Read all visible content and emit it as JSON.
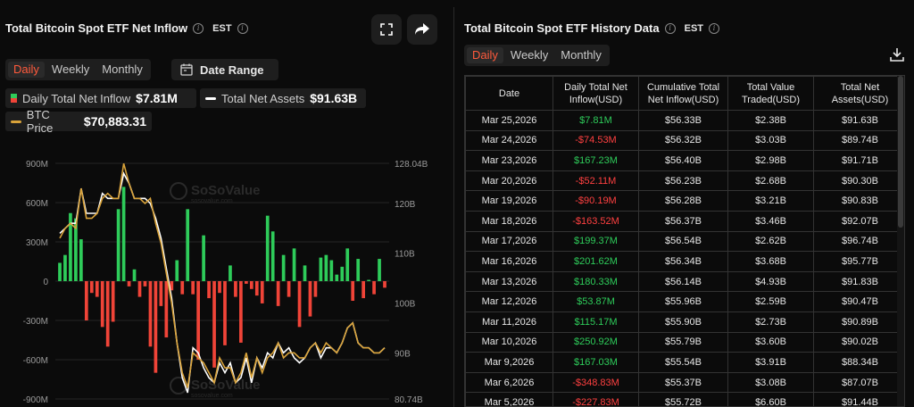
{
  "left": {
    "title": "Total Bitcoin Spot ETF Net Inflow",
    "tz": "EST",
    "tabs": [
      "Daily",
      "Weekly",
      "Monthly"
    ],
    "date_range": "Date Range",
    "legend": {
      "inflow_label": "Daily Total Net Inflow",
      "inflow_value": "$7.81M",
      "assets_label": "Total Net Assets",
      "assets_value": "$91.63B",
      "btc_label": "BTC Price",
      "btc_value": "$70,883.31"
    },
    "watermark": "SoSoValue",
    "watermark_sub": "sosovalue.com"
  },
  "right": {
    "title": "Total Bitcoin Spot ETF History Data",
    "tz": "EST",
    "tabs": [
      "Daily",
      "Weekly",
      "Monthly"
    ],
    "headers": [
      "Date",
      "Daily Total Net Inflow(USD)",
      "Cumulative Total Net Inflow(USD)",
      "Total Value Traded(USD)",
      "Total Net Assets(USD)"
    ],
    "rows": [
      [
        "Mar 25,2026",
        "$7.81M",
        "$56.33B",
        "$2.38B",
        "$91.63B"
      ],
      [
        "Mar 24,2026",
        "-$74.53M",
        "$56.32B",
        "$3.03B",
        "$89.74B"
      ],
      [
        "Mar 23,2026",
        "$167.23M",
        "$56.40B",
        "$2.98B",
        "$91.71B"
      ],
      [
        "Mar 20,2026",
        "-$52.11M",
        "$56.23B",
        "$2.68B",
        "$90.30B"
      ],
      [
        "Mar 19,2026",
        "-$90.19M",
        "$56.28B",
        "$3.21B",
        "$90.83B"
      ],
      [
        "Mar 18,2026",
        "-$163.52M",
        "$56.37B",
        "$3.46B",
        "$92.07B"
      ],
      [
        "Mar 17,2026",
        "$199.37M",
        "$56.54B",
        "$2.62B",
        "$96.74B"
      ],
      [
        "Mar 16,2026",
        "$201.62M",
        "$56.34B",
        "$3.68B",
        "$95.77B"
      ],
      [
        "Mar 13,2026",
        "$180.33M",
        "$56.14B",
        "$4.93B",
        "$91.83B"
      ],
      [
        "Mar 12,2026",
        "$53.87M",
        "$55.96B",
        "$2.59B",
        "$90.47B"
      ],
      [
        "Mar 11,2026",
        "$115.17M",
        "$55.90B",
        "$2.73B",
        "$90.89B"
      ],
      [
        "Mar 10,2026",
        "$250.92M",
        "$55.79B",
        "$3.60B",
        "$90.02B"
      ],
      [
        "Mar 9,2026",
        "$167.03M",
        "$55.54B",
        "$3.91B",
        "$88.34B"
      ],
      [
        "Mar 6,2026",
        "-$348.83M",
        "$55.37B",
        "$3.08B",
        "$87.07B"
      ],
      [
        "Mar 5,2026",
        "-$227.83M",
        "$55.72B",
        "$6.60B",
        "$91.44B"
      ]
    ]
  },
  "chart_data": {
    "type": "bar",
    "title": "Total Bitcoin Spot ETF Net Inflow",
    "y_left_ticks": [
      "900M",
      "600M",
      "300M",
      "0",
      "-300M",
      "-600M",
      "-900M"
    ],
    "y_right_ticks": [
      "128.04B",
      "120B",
      "110B",
      "100B",
      "90B",
      "80.74B"
    ],
    "ylim_left": [
      -900,
      900
    ],
    "ylim_right": [
      80.74,
      128.04
    ],
    "grid": true,
    "colors": {
      "positive": "#2ecc5a",
      "negative": "#f04438",
      "assets": "#ffffff",
      "btc": "#d9a33a"
    },
    "bars": [
      140,
      200,
      520,
      480,
      320,
      -300,
      -90,
      -120,
      -350,
      -500,
      -310,
      550,
      720,
      -40,
      90,
      -120,
      -40,
      -500,
      -700,
      -190,
      -430,
      -70,
      160,
      -100,
      550,
      -100,
      -600,
      350,
      -130,
      -660,
      -90,
      -490,
      120,
      -120,
      -470,
      -20,
      -60,
      -110,
      -170,
      500,
      380,
      -190,
      200,
      -120,
      250,
      -350,
      120,
      -270,
      -120,
      180,
      200,
      160,
      50,
      110,
      250,
      -150,
      170,
      -130,
      10,
      -100,
      170,
      -50
    ],
    "assets": [
      114,
      115,
      116,
      116,
      123,
      118,
      118,
      118,
      122,
      121,
      121,
      121,
      126,
      124,
      121,
      121,
      121,
      120,
      117,
      113,
      107,
      101,
      92,
      85,
      82,
      91,
      90,
      87,
      85,
      84,
      88,
      86,
      88,
      84,
      85,
      89,
      84,
      89,
      87,
      90,
      89,
      92,
      90,
      91,
      89,
      88,
      89,
      91,
      92,
      89,
      91,
      91,
      90,
      92,
      95,
      96,
      92,
      91,
      91,
      90,
      90,
      91
    ],
    "btc": [
      113,
      115,
      116,
      115,
      123,
      117,
      117,
      118,
      121,
      122,
      121,
      121,
      128,
      124,
      121,
      121,
      120,
      121,
      116,
      112,
      106,
      100,
      92,
      86,
      83,
      90,
      89,
      88,
      86,
      84,
      89,
      87,
      87,
      84,
      86,
      90,
      85,
      89,
      86,
      89,
      90,
      92,
      89,
      90,
      90,
      89,
      89,
      91,
      92,
      90,
      92,
      91,
      90,
      92,
      95,
      96,
      92,
      91,
      91,
      90,
      90,
      91
    ]
  }
}
